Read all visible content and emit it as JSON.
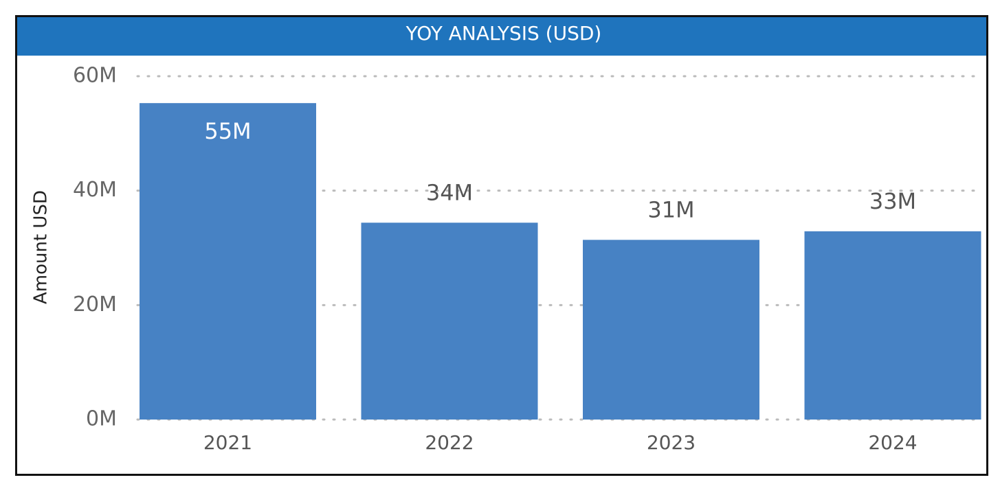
{
  "chart_data": {
    "type": "bar",
    "title": "YOY ANALYSIS (USD)",
    "y_label": "Amount USD",
    "categories": [
      "2021",
      "2022",
      "2023",
      "2024"
    ],
    "values": [
      55300000,
      34400000,
      31400000,
      32900000
    ],
    "value_labels": [
      "55M",
      "34M",
      "31M",
      "33M"
    ],
    "color": "#4782c4",
    "ylim": [
      0,
      60000000
    ],
    "yticks": [
      {
        "value": 0,
        "label": "0M"
      },
      {
        "value": 20000000,
        "label": "20M"
      },
      {
        "value": 40000000,
        "label": "40M"
      },
      {
        "value": 60000000,
        "label": "60M"
      }
    ],
    "grid": true
  }
}
